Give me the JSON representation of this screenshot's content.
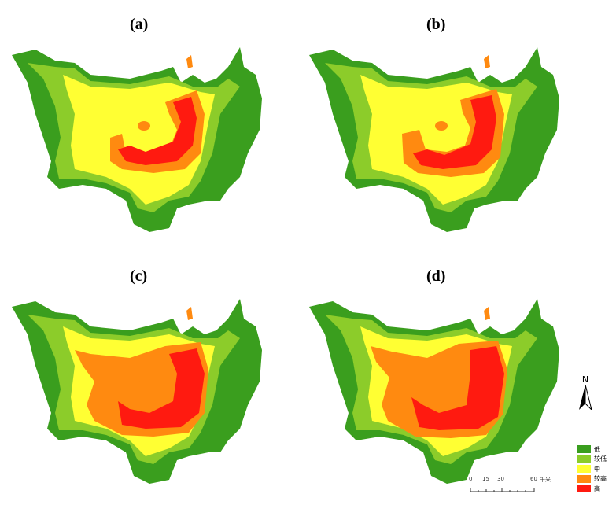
{
  "panels": [
    {
      "label": "(a)"
    },
    {
      "label": "(b)"
    },
    {
      "label": "(c)"
    },
    {
      "label": "(d)"
    }
  ],
  "legend": {
    "items": [
      {
        "label": "低",
        "color": "#3a9e1e"
      },
      {
        "label": "较低",
        "color": "#8ccc2a"
      },
      {
        "label": "中",
        "color": "#ffff33"
      },
      {
        "label": "较高",
        "color": "#ff8a10"
      },
      {
        "label": "高",
        "color": "#ff1a10"
      }
    ]
  },
  "scale_bar": {
    "ticks": [
      "0",
      "15",
      "30",
      "60"
    ],
    "unit": "千米"
  },
  "north_arrow": {
    "label": "N"
  }
}
